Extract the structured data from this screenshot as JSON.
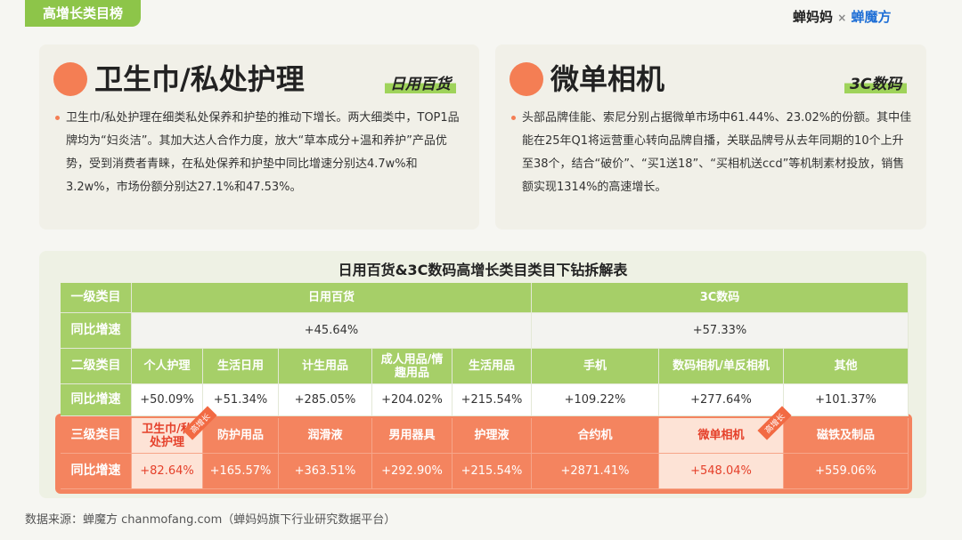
{
  "header": {
    "tag": "高增长类目榜",
    "logo_left": "蝉妈妈",
    "logo_sep": "×",
    "logo_right": "蝉魔方"
  },
  "cards": [
    {
      "title": "卫生巾/私处护理",
      "tag": "日用百货",
      "text": "卫生巾/私处护理在细类私处保养和护垫的推动下增长。两大细类中，TOP1品牌均为“妇炎洁”。其加大达人合作力度，放大“草本成分+温和养护”产品优势，受到消费者青睐，在私处保养和护垫中同比增速分别达4.7w%和3.2w%，市场份额分别达27.1%和47.53%。"
    },
    {
      "title": "微单相机",
      "tag": "3C数码",
      "text": "头部品牌佳能、索尼分别占据微单市场中61.44%、23.02%的份额。其中佳能在25年Q1将运营重心转向品牌自播，关联品牌号从去年同期的10个上升至38个，结合“破价”、“买1送18”、“买相机送ccd”等机制素材投放，销售额实现1314%的高速增长。"
    }
  ],
  "table": {
    "title": "日用百货&3C数码高增长类目类目下钻拆解表",
    "badge": "高增长",
    "rows": [
      [
        "一级类目",
        "日用百货",
        "3C数码"
      ],
      [
        "同比增速",
        "+45.64%",
        "+57.33%"
      ],
      [
        "二级类目",
        "个人护理",
        "生活日用",
        "计生用品",
        "成人用品/情趣用品",
        "生活用品",
        "手机",
        "数码相机/单反相机",
        "其他"
      ],
      [
        "同比增速",
        "+50.09%",
        "+51.34%",
        "+285.05%",
        "+204.02%",
        "+215.54%",
        "+109.22%",
        "+277.64%",
        "+101.37%"
      ],
      [
        "三级类目",
        "卫生巾/私处护理",
        "防护用品",
        "润滑液",
        "男用器具",
        "护理液",
        "合约机",
        "微单相机",
        "磁铁及制品"
      ],
      [
        "同比增速",
        "+82.64%",
        "+165.57%",
        "+363.51%",
        "+292.90%",
        "+215.54%",
        "+2871.41%",
        "+548.04%",
        "+559.06%"
      ]
    ]
  },
  "footer": "数据来源：蝉魔方 chanmofang.com（蝉妈妈旗下行业研究数据平台）"
}
